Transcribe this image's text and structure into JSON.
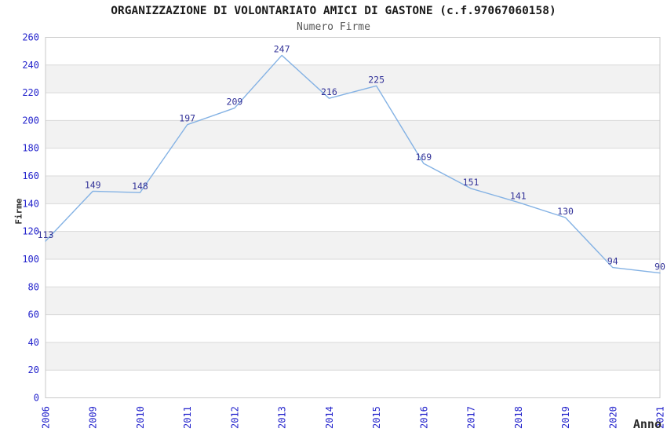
{
  "chart_data": {
    "type": "line",
    "title": "ORGANIZZAZIONE DI VOLONTARIATO AMICI DI GASTONE (c.f.97067060158)",
    "subtitle": "Numero Firme",
    "xlabel": "Anno",
    "ylabel": "Firme",
    "categories": [
      "2006",
      "2009",
      "2010",
      "2011",
      "2012",
      "2013",
      "2014",
      "2015",
      "2016",
      "2017",
      "2018",
      "2019",
      "2020",
      "2021"
    ],
    "series": [
      {
        "name": "Numero Firme",
        "values": [
          113,
          149,
          148,
          197,
          209,
          247,
          216,
          225,
          169,
          151,
          141,
          130,
          94,
          90
        ]
      }
    ],
    "ylim": [
      0,
      260
    ],
    "ytick_step": 20,
    "grid": "horizontal",
    "alternating_bands": true,
    "legend": "none",
    "data_labels_shown": true,
    "colors": {
      "line": "#84b2e4",
      "tick_label": "#2323cc",
      "data_label": "#333399",
      "band": "#f2f2f2",
      "gridline": "#d9d9d9",
      "border": "#c9c9c9",
      "title": "#1a1a1a",
      "subtitle": "#565656",
      "axis_title": "#2a2a2a"
    }
  }
}
